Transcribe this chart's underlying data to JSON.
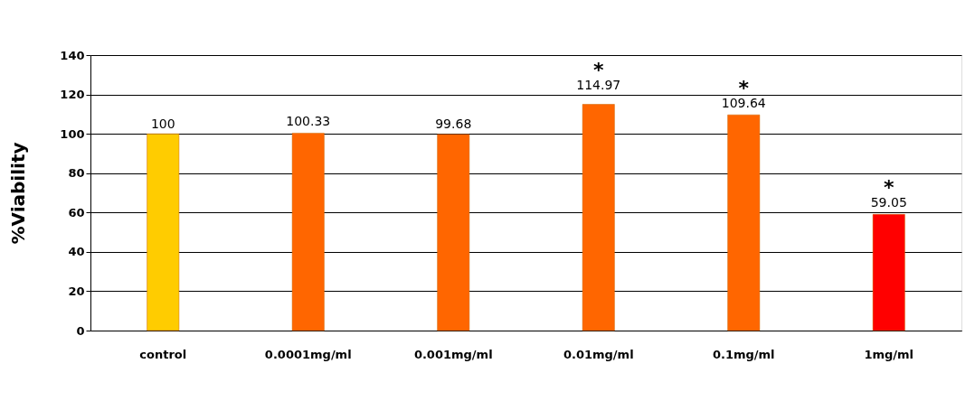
{
  "chart_data": {
    "type": "bar",
    "ylabel": "%Viability",
    "categories": [
      "control",
      "0.0001mg/ml",
      "0.001mg/ml",
      "0.01mg/ml",
      "0.1mg/ml",
      "1mg/ml"
    ],
    "values": [
      100,
      100.33,
      99.68,
      114.97,
      109.64,
      59.05
    ],
    "colors": [
      "#ffcc00",
      "#ff6600",
      "#ff6600",
      "#ff6600",
      "#ff6600",
      "#ff0000"
    ],
    "data_labels": true,
    "annotations": [
      {
        "text": "*",
        "x": "0.01mg/ml",
        "y": 114.97
      },
      {
        "text": "*",
        "x": "0.1mg/ml",
        "y": 109.64
      },
      {
        "text": "*",
        "x": "1mg/ml",
        "y": 59.05
      }
    ],
    "ylim": [
      0,
      140
    ],
    "yticks": [
      0,
      20,
      40,
      60,
      80,
      100,
      120,
      140
    ],
    "grid": "y"
  }
}
